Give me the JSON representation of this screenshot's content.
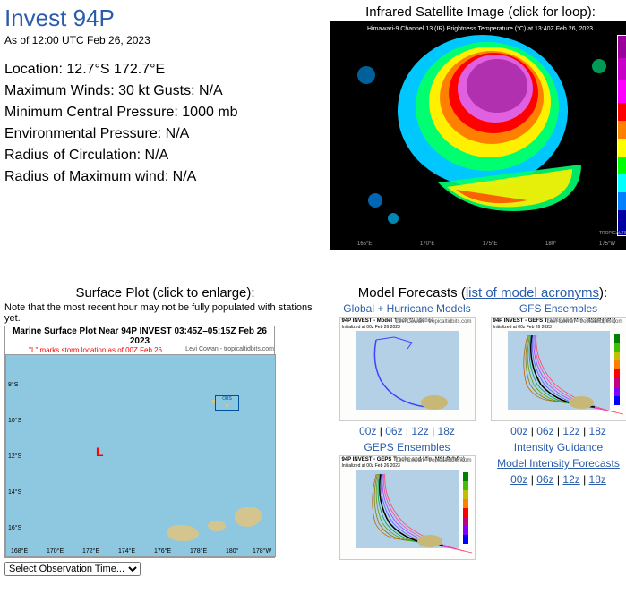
{
  "header": {
    "title": "Invest 94P",
    "asof": "As of 12:00 UTC Feb 26, 2023"
  },
  "info": {
    "location_label": "Location:",
    "location_value": "12.7°S 172.7°E",
    "maxwinds_label": "Maximum Winds:",
    "maxwinds_value": "30 kt  Gusts: N/A",
    "pressure_label": "Minimum Central Pressure:",
    "pressure_value": "1000 mb",
    "envpress_label": "Environmental Pressure:",
    "envpress_value": "N/A",
    "roc_label": "Radius of Circulation:",
    "roc_value": "N/A",
    "rmw_label": "Radius of Maximum wind:",
    "rmw_value": "N/A"
  },
  "sat": {
    "title": "Infrared Satellite Image (click for loop):",
    "header_text": "Himawari-9 Channel 13 (IR) Brightness Temperature (°C) at 13:40Z Feb 26, 2023",
    "credit": "TROPICALTIDBITS.COM"
  },
  "surface": {
    "title": "Surface Plot (click to enlarge):",
    "note": "Note that the most recent hour may not be fully populated with stations yet.",
    "plot_title": "Marine Surface Plot Near 94P INVEST 03:45Z–05:15Z Feb 26 2023",
    "plot_subtitle": "\"L\" marks storm location as of 00Z Feb 26",
    "credit": "Levi Cowan - tropicaltidbits.com",
    "storm_marker": "L",
    "lat_labels": [
      "8°S",
      "10°S",
      "12°S",
      "14°S",
      "16°S"
    ],
    "lon_labels": [
      "168°E",
      "170°E",
      "172°E",
      "174°E",
      "176°E",
      "178°E",
      "180°",
      "178°W"
    ],
    "select_label": "Select Observation Time..."
  },
  "models": {
    "title_prefix": "Model Forecasts (",
    "title_link": "list of model acronyms",
    "title_suffix": "):",
    "cells": [
      {
        "label": "Global + Hurricane Models",
        "thumb_title": "94P INVEST - Model Track Guidance",
        "thumb_sub": "Initialized at 00z Feb 26 2023",
        "runs": [
          "00z",
          "06z",
          "12z",
          "18z"
        ]
      },
      {
        "label": "GFS Ensembles",
        "thumb_title": "94P INVEST - GEFS Tracks and Min. MSLP (hPa)",
        "thumb_sub": "Initialized at 00z Feb 26 2023",
        "runs": [
          "00z",
          "06z",
          "12z",
          "18z"
        ]
      },
      {
        "label": "GEPS Ensembles",
        "thumb_title": "94P INVEST - GEPS Tracks and Min. MSLP (hPa)",
        "thumb_sub": "Initialized at 00z Feb 26 2023",
        "runs": []
      },
      {
        "label": "Intensity Guidance",
        "link_text": "Model Intensity Forecasts",
        "runs": [
          "00z",
          "06z",
          "12z",
          "18z"
        ]
      }
    ],
    "credit": "Levi Cowan - tropicaltidbits.com"
  },
  "colors": {
    "link": "#2a5caa",
    "ocean": "#8ec7e0",
    "model_ocean": "#b3d0e6"
  }
}
